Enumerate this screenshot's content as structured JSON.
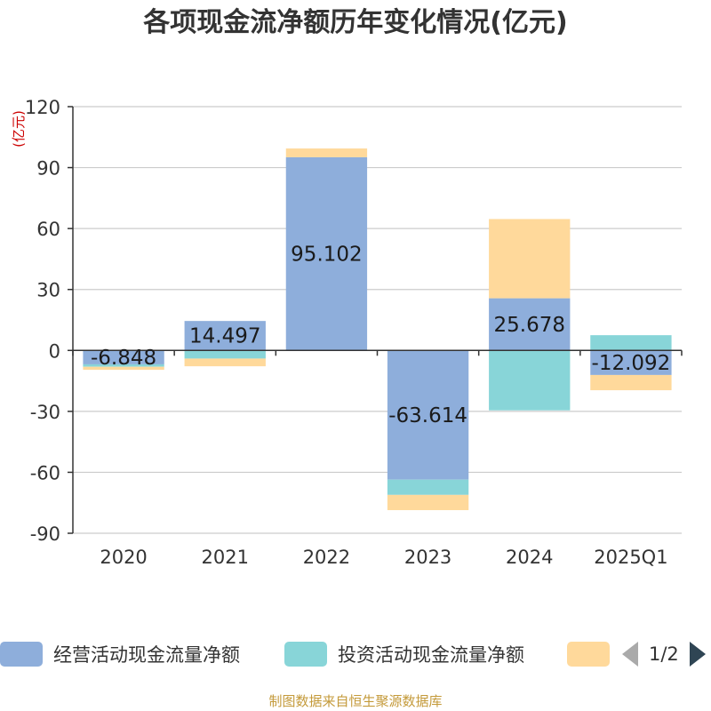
{
  "chart_data": {
    "type": "bar",
    "stacked": true,
    "title": "各项现金流净额历年变化情况(亿元)",
    "ylabel": "(亿元)",
    "xlabel": "",
    "categories": [
      "2020",
      "2021",
      "2022",
      "2023",
      "2024",
      "2025Q1"
    ],
    "ylim": [
      -90,
      120
    ],
    "yticks": [
      120,
      90,
      60,
      30,
      0,
      -30,
      -60,
      -90
    ],
    "grid": true,
    "series": [
      {
        "name": "经营活动现金流量净额",
        "color": "#8eaedb",
        "values": [
          -6.848,
          14.497,
          95.102,
          -63.614,
          25.678,
          -12.092
        ],
        "data_labels": [
          "-6.848",
          "14.497",
          "95.102",
          "-63.614",
          "25.678",
          "-12.092"
        ]
      },
      {
        "name": "投资活动现金流量净额",
        "color": "#88d5d8",
        "values": [
          -1.2,
          -4.0,
          0,
          -7.5,
          -29.5,
          7.5
        ]
      },
      {
        "name": "",
        "color": "#ffd99b",
        "values": [
          -1.5,
          -3.8,
          4.3,
          -7.5,
          39.0,
          -7.5
        ]
      }
    ]
  },
  "legend": {
    "placement": "bottom",
    "page": "1/2"
  },
  "source": "制图数据来自恒生聚源数据库"
}
